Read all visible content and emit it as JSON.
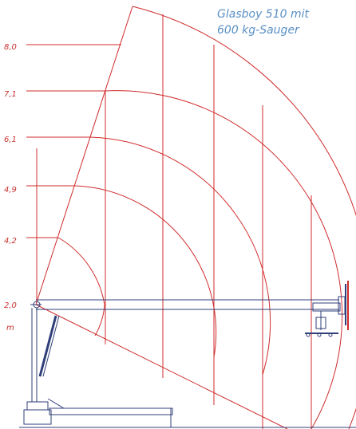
{
  "title": {
    "line1": "Glasboy 510 mit",
    "line2": "600 kg-Sauger"
  },
  "height_labels": [
    "8,0",
    "7,1",
    "6,1",
    "4,9",
    "4,2",
    "2,0"
  ],
  "unit_label": "m",
  "colors": {
    "load_curves": "#d02b2b",
    "machine": "#2f3f7a",
    "title": "#5a8fc4",
    "labels": "#c8302c"
  }
}
